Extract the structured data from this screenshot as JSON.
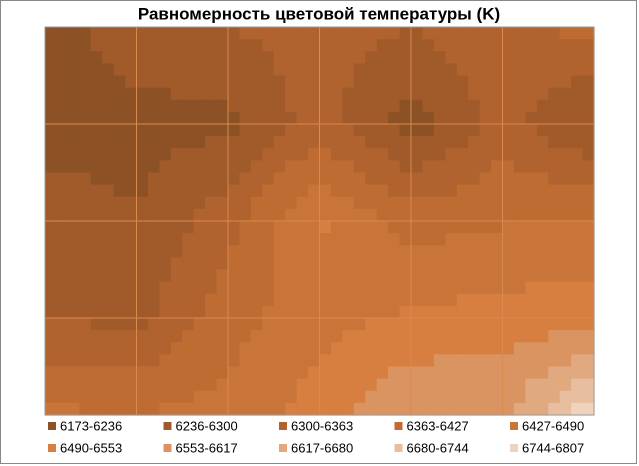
{
  "chart_data": {
    "type": "contour",
    "title": "Равномерность цветовой температуры (K)",
    "grid_values": [
      [
        6200,
        6280,
        6300,
        6330,
        6300,
        6350,
        6380
      ],
      [
        6200,
        6210,
        6220,
        6330,
        6200,
        6330,
        6220
      ],
      [
        6280,
        6240,
        6340,
        6500,
        6400,
        6420,
        6440
      ],
      [
        6300,
        6280,
        6400,
        6470,
        6500,
        6520,
        6520
      ],
      [
        6440,
        6430,
        6450,
        6520,
        6620,
        6600,
        6800
      ]
    ],
    "bands": [
      {
        "from": 6173,
        "to": 6236,
        "label": "6173-6236",
        "color": "#8c5124"
      },
      {
        "from": 6236,
        "to": 6300,
        "label": "6236-6300",
        "color": "#a15b2a"
      },
      {
        "from": 6300,
        "to": 6363,
        "label": "6300-6363",
        "color": "#b0632e"
      },
      {
        "from": 6363,
        "to": 6427,
        "label": "6363-6427",
        "color": "#bf6c33"
      },
      {
        "from": 6427,
        "to": 6490,
        "label": "6427-6490",
        "color": "#c97439"
      },
      {
        "from": 6490,
        "to": 6553,
        "label": "6490-6553",
        "color": "#d67f40"
      },
      {
        "from": 6553,
        "to": 6617,
        "label": "6553-6617",
        "color": "#da9461"
      },
      {
        "from": 6617,
        "to": 6680,
        "label": "6617-6680",
        "color": "#e0a97f"
      },
      {
        "from": 6680,
        "to": 6744,
        "label": "6680-6744",
        "color": "#e8bea0"
      },
      {
        "from": 6744,
        "to": 6807,
        "label": "6744-6807",
        "color": "#efd3be"
      }
    ],
    "grid": true
  }
}
